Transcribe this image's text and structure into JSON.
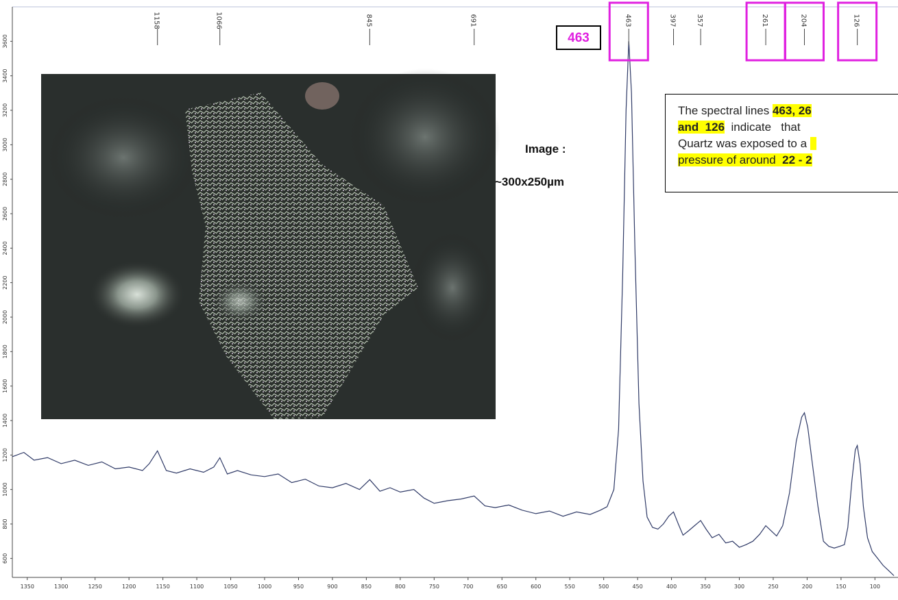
{
  "chart_data": {
    "type": "line",
    "x": [
      1372,
      1355,
      1340,
      1320,
      1300,
      1280,
      1260,
      1240,
      1220,
      1200,
      1180,
      1170,
      1158,
      1145,
      1130,
      1110,
      1090,
      1075,
      1066,
      1055,
      1040,
      1020,
      1000,
      980,
      960,
      940,
      920,
      900,
      880,
      860,
      845,
      830,
      815,
      800,
      780,
      765,
      750,
      730,
      710,
      691,
      675,
      660,
      640,
      620,
      600,
      580,
      560,
      540,
      520,
      505,
      495,
      485,
      478,
      472,
      467,
      463,
      459,
      454,
      448,
      442,
      436,
      428,
      420,
      412,
      404,
      397,
      390,
      383,
      375,
      366,
      357,
      349,
      340,
      330,
      320,
      310,
      300,
      290,
      280,
      270,
      261,
      253,
      245,
      236,
      226,
      216,
      208,
      204,
      199,
      192,
      184,
      176,
      168,
      160,
      152,
      145,
      140,
      134,
      129,
      126,
      122,
      117,
      111,
      104,
      96,
      88,
      80,
      72
    ],
    "values": [
      1190,
      1215,
      1170,
      1185,
      1150,
      1170,
      1140,
      1160,
      1120,
      1130,
      1110,
      1150,
      1224,
      1110,
      1095,
      1120,
      1100,
      1130,
      1184,
      1090,
      1110,
      1085,
      1075,
      1090,
      1040,
      1060,
      1020,
      1010,
      1035,
      1000,
      1057,
      990,
      1010,
      985,
      1000,
      950,
      920,
      935,
      945,
      962,
      905,
      895,
      910,
      880,
      860,
      875,
      845,
      870,
      855,
      880,
      900,
      1000,
      1350,
      2250,
      3200,
      3600,
      3300,
      2400,
      1500,
      1050,
      840,
      780,
      770,
      800,
      845,
      870,
      800,
      735,
      760,
      790,
      820,
      770,
      720,
      740,
      690,
      700,
      665,
      680,
      700,
      740,
      790,
      760,
      730,
      790,
      980,
      1280,
      1420,
      1445,
      1360,
      1140,
      900,
      700,
      670,
      660,
      670,
      680,
      780,
      1050,
      1230,
      1255,
      1150,
      900,
      720,
      640,
      600,
      560,
      530,
      500
    ],
    "color": "#2e3966",
    "xlim": [
      1372,
      66
    ],
    "ylim": [
      490,
      3800
    ],
    "xticks": [
      1350,
      1300,
      1250,
      1200,
      1150,
      1100,
      1050,
      1000,
      950,
      900,
      850,
      800,
      750,
      700,
      650,
      600,
      550,
      500,
      450,
      400,
      350,
      300,
      250,
      200,
      150,
      100
    ],
    "yticks": [
      600,
      800,
      1000,
      1200,
      1400,
      1600,
      1800,
      2000,
      2200,
      2400,
      2600,
      2800,
      3000,
      3200,
      3400,
      3600
    ],
    "peaks": {
      "values": [
        1158,
        1066,
        845,
        691,
        463,
        397,
        357,
        261,
        204,
        126
      ],
      "boxed": [
        false,
        false,
        false,
        false,
        true,
        false,
        false,
        true,
        true,
        true
      ]
    },
    "callout": 463,
    "image_caption": [
      "Image :",
      "~300x250µm"
    ],
    "annotation": [
      [
        {
          "text": "The spectral lines ",
          "highlight": false
        },
        {
          "text": "463, 26",
          "highlight": true
        }
      ],
      [
        {
          "text": "and  126",
          "highlight": true
        },
        {
          "text": "  indicate   that",
          "highlight": false
        }
      ],
      [
        {
          "text": "Quartz was exposed to a ",
          "highlight": false
        },
        {
          "text": "  ",
          "highlight": true
        }
      ],
      [
        {
          "text": "pressure of around  ",
          "highlight": true
        },
        {
          "text": "22 - 2",
          "highlight": true
        }
      ]
    ]
  }
}
